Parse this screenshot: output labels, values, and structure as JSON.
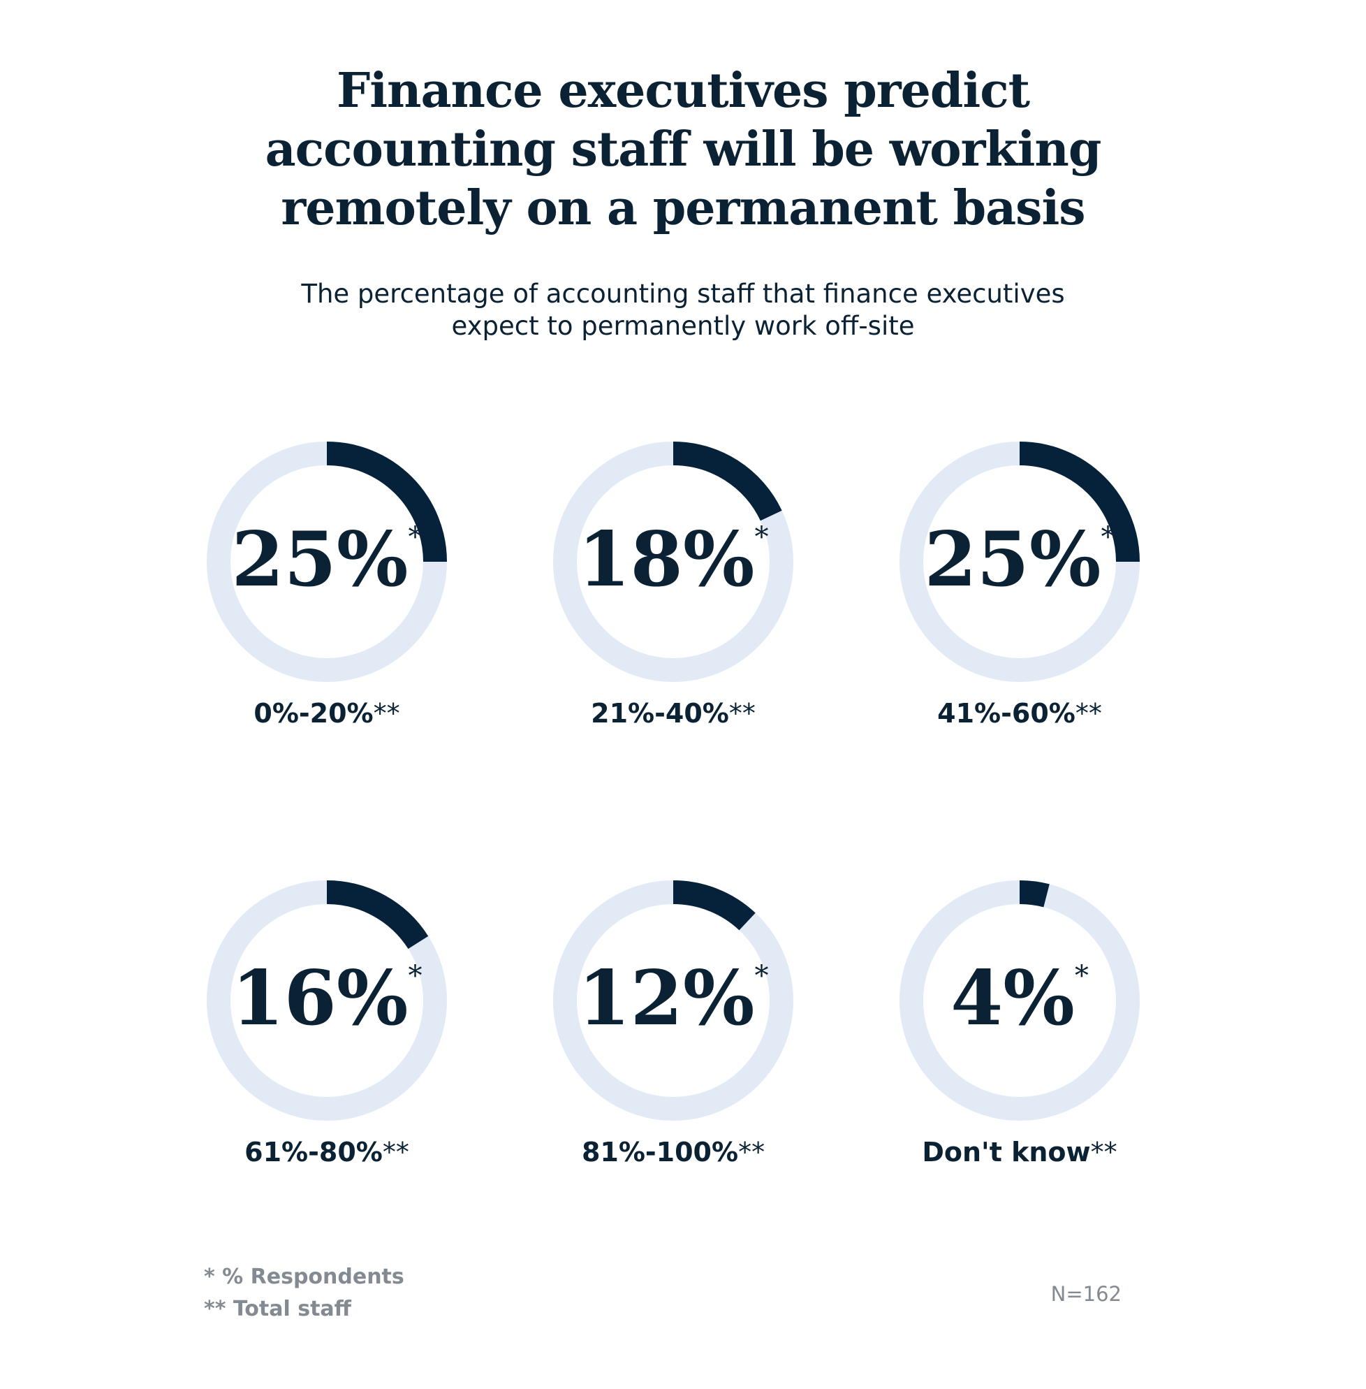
{
  "title": {
    "line1": "Finance executives predict",
    "line2": "accounting staff will be working",
    "line3": "remotely on a permanent basis"
  },
  "subtitle": {
    "line1": "The percentage of accounting staff that finance executives",
    "line2": "expect to permanently work off-site"
  },
  "colors": {
    "track": "#e2eaf6",
    "fill": "#06223a",
    "text": "#0b2235",
    "muted": "#838a91"
  },
  "chart_data": {
    "type": "pie",
    "title": "Finance executives predict accounting staff will be working remotely on a permanent basis",
    "subtitle": "The percentage of accounting staff that finance executives expect to permanently work off-site",
    "unit": "% Respondents",
    "categories": [
      "0%-20%",
      "21%-40%",
      "41%-60%",
      "61%-80%",
      "81%-100%",
      "Don't know"
    ],
    "values": [
      25,
      18,
      25,
      16,
      12,
      4
    ],
    "items": [
      {
        "label": "0%-20%",
        "value": 25,
        "display": "25%"
      },
      {
        "label": "21%-40%",
        "value": 18,
        "display": "18%"
      },
      {
        "label": "41%-60%",
        "value": 25,
        "display": "25%"
      },
      {
        "label": "61%-80%",
        "value": 16,
        "display": "16%"
      },
      {
        "label": "81%-100%",
        "value": 12,
        "display": "12%"
      },
      {
        "label": "Don't know",
        "value": 4,
        "display": "4%"
      }
    ],
    "value_marker": "*",
    "label_marker": "**"
  },
  "footnotes": {
    "note1": "* % Respondents",
    "note2": "** Total staff"
  },
  "sample_size": "N=162"
}
